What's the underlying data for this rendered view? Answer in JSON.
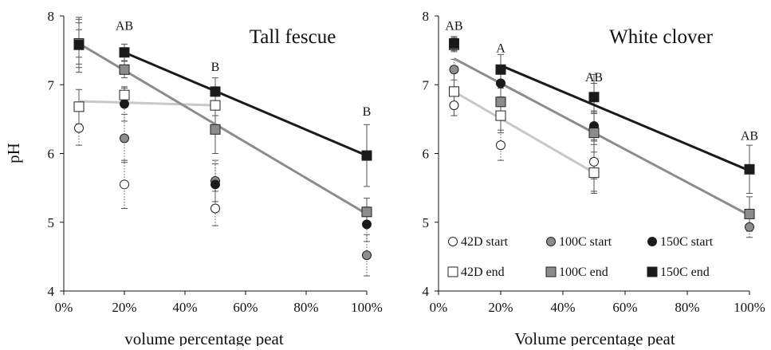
{
  "colors": {
    "42D": "#ffffff",
    "100C": "#8c8c8c",
    "150C": "#1a1a1a",
    "trend_42D": "#c8c8c8",
    "trend_100C": "#8c8c8c",
    "trend_150C": "#1a1a1a",
    "axis": "#111111",
    "marker_edge": "#222222"
  },
  "chart_data": [
    {
      "type": "scatter",
      "title": "Tall fescue",
      "xlabel": "volume percentage peat",
      "ylabel": "pH",
      "xlim": [
        0,
        100
      ],
      "ylim": [
        4,
        8
      ],
      "xticks": [
        "0%",
        "20%",
        "40%",
        "60%",
        "80%",
        "100%"
      ],
      "yticks": [
        "4",
        "5",
        "6",
        "7",
        "8"
      ],
      "x": [
        5,
        20,
        50,
        100
      ],
      "grid": false,
      "series": [
        {
          "key": "42D_start",
          "marker": "open-circle",
          "values": [
            6.37,
            5.55,
            5.2,
            null
          ],
          "err": [
            0.25,
            0.35,
            0.25,
            0
          ]
        },
        {
          "key": "100C_start",
          "marker": "gray-circle",
          "values": [
            7.6,
            6.22,
            5.6,
            4.52
          ],
          "err": [
            0.3,
            0.35,
            0.3,
            0.3
          ]
        },
        {
          "key": "150C_start",
          "marker": "black-circle",
          "values": [
            7.6,
            6.72,
            5.55,
            4.97
          ],
          "err": [
            0.35,
            0.25,
            0.3,
            0.25
          ]
        },
        {
          "key": "42D_end",
          "marker": "open-square",
          "values": [
            6.68,
            6.85,
            6.7,
            null
          ],
          "err": [
            0.25,
            0.1,
            0.15,
            0
          ]
        },
        {
          "key": "100C_end",
          "marker": "gray-square",
          "values": [
            7.6,
            7.22,
            6.35,
            5.15
          ],
          "err": [
            0.2,
            0.12,
            0.35,
            0.2
          ]
        },
        {
          "key": "150C_end",
          "marker": "black-square",
          "values": [
            7.58,
            7.47,
            6.9,
            5.97
          ],
          "err": [
            0.4,
            0.12,
            0.2,
            0.45
          ]
        }
      ],
      "trendlines": [
        {
          "key": "42D",
          "x": [
            5,
            50
          ],
          "y": [
            6.76,
            6.7
          ]
        },
        {
          "key": "100C",
          "x": [
            5,
            100
          ],
          "y": [
            7.6,
            5.12
          ]
        },
        {
          "key": "150C",
          "x": [
            20,
            100
          ],
          "y": [
            7.47,
            5.97
          ]
        }
      ],
      "annotations": [
        {
          "text": "AB",
          "x": 20,
          "y": 7.8
        },
        {
          "text": "B",
          "x": 50,
          "y": 7.2
        },
        {
          "text": "B",
          "x": 100,
          "y": 6.55
        }
      ]
    },
    {
      "type": "scatter",
      "title": "White clover",
      "xlabel": "Volume percentage peat",
      "ylabel": "",
      "xlim": [
        0,
        100
      ],
      "ylim": [
        4,
        8
      ],
      "xticks": [
        "0%",
        "20%",
        "40%",
        "60%",
        "80%",
        "100%"
      ],
      "yticks": [
        "4",
        "5",
        "6",
        "7",
        "8"
      ],
      "x": [
        5,
        20,
        50,
        100
      ],
      "grid": false,
      "series": [
        {
          "key": "42D_start",
          "marker": "open-circle",
          "values": [
            6.7,
            6.12,
            5.88,
            null
          ],
          "err": [
            0.15,
            0.22,
            0.25,
            0
          ]
        },
        {
          "key": "100C_start",
          "marker": "gray-circle",
          "values": [
            7.22,
            7.02,
            6.38,
            4.93
          ],
          "err": [
            0.15,
            0.2,
            0.2,
            0.15
          ]
        },
        {
          "key": "150C_start",
          "marker": "black-circle",
          "values": [
            7.6,
            7.02,
            6.4,
            null
          ],
          "err": [
            0.1,
            0.2,
            0.2,
            0
          ]
        },
        {
          "key": "42D_end",
          "marker": "open-square",
          "values": [
            6.9,
            6.55,
            5.72,
            null
          ],
          "err": [
            0.35,
            0.25,
            0.3,
            0
          ]
        },
        {
          "key": "100C_end",
          "marker": "gray-square",
          "values": [
            7.58,
            6.75,
            6.3,
            5.12
          ],
          "err": [
            0.1,
            0.2,
            0.85,
            0.25
          ]
        },
        {
          "key": "150C_end",
          "marker": "black-square",
          "values": [
            7.6,
            7.22,
            6.82,
            5.77
          ],
          "err": [
            0.1,
            0.22,
            0.2,
            0.35
          ]
        }
      ],
      "trendlines": [
        {
          "key": "42D",
          "x": [
            5,
            50
          ],
          "y": [
            6.9,
            5.72
          ]
        },
        {
          "key": "100C",
          "x": [
            5,
            100
          ],
          "y": [
            7.38,
            5.1
          ]
        },
        {
          "key": "150C",
          "x": [
            20,
            100
          ],
          "y": [
            7.28,
            5.75
          ]
        }
      ],
      "annotations": [
        {
          "text": "AB",
          "x": 5,
          "y": 7.8
        },
        {
          "text": "A",
          "x": 20,
          "y": 7.47
        },
        {
          "text": "AB",
          "x": 50,
          "y": 7.05
        },
        {
          "text": "AB",
          "x": 100,
          "y": 6.2
        }
      ],
      "legend": {
        "placement": "bottom-right",
        "entries": [
          {
            "marker": "open-circle",
            "label": "42D start"
          },
          {
            "marker": "gray-circle",
            "label": "100C start"
          },
          {
            "marker": "black-circle",
            "label": "150C start"
          },
          {
            "marker": "open-square",
            "label": "42D end"
          },
          {
            "marker": "gray-square",
            "label": "100C end"
          },
          {
            "marker": "black-square",
            "label": "150C end"
          }
        ]
      }
    }
  ]
}
